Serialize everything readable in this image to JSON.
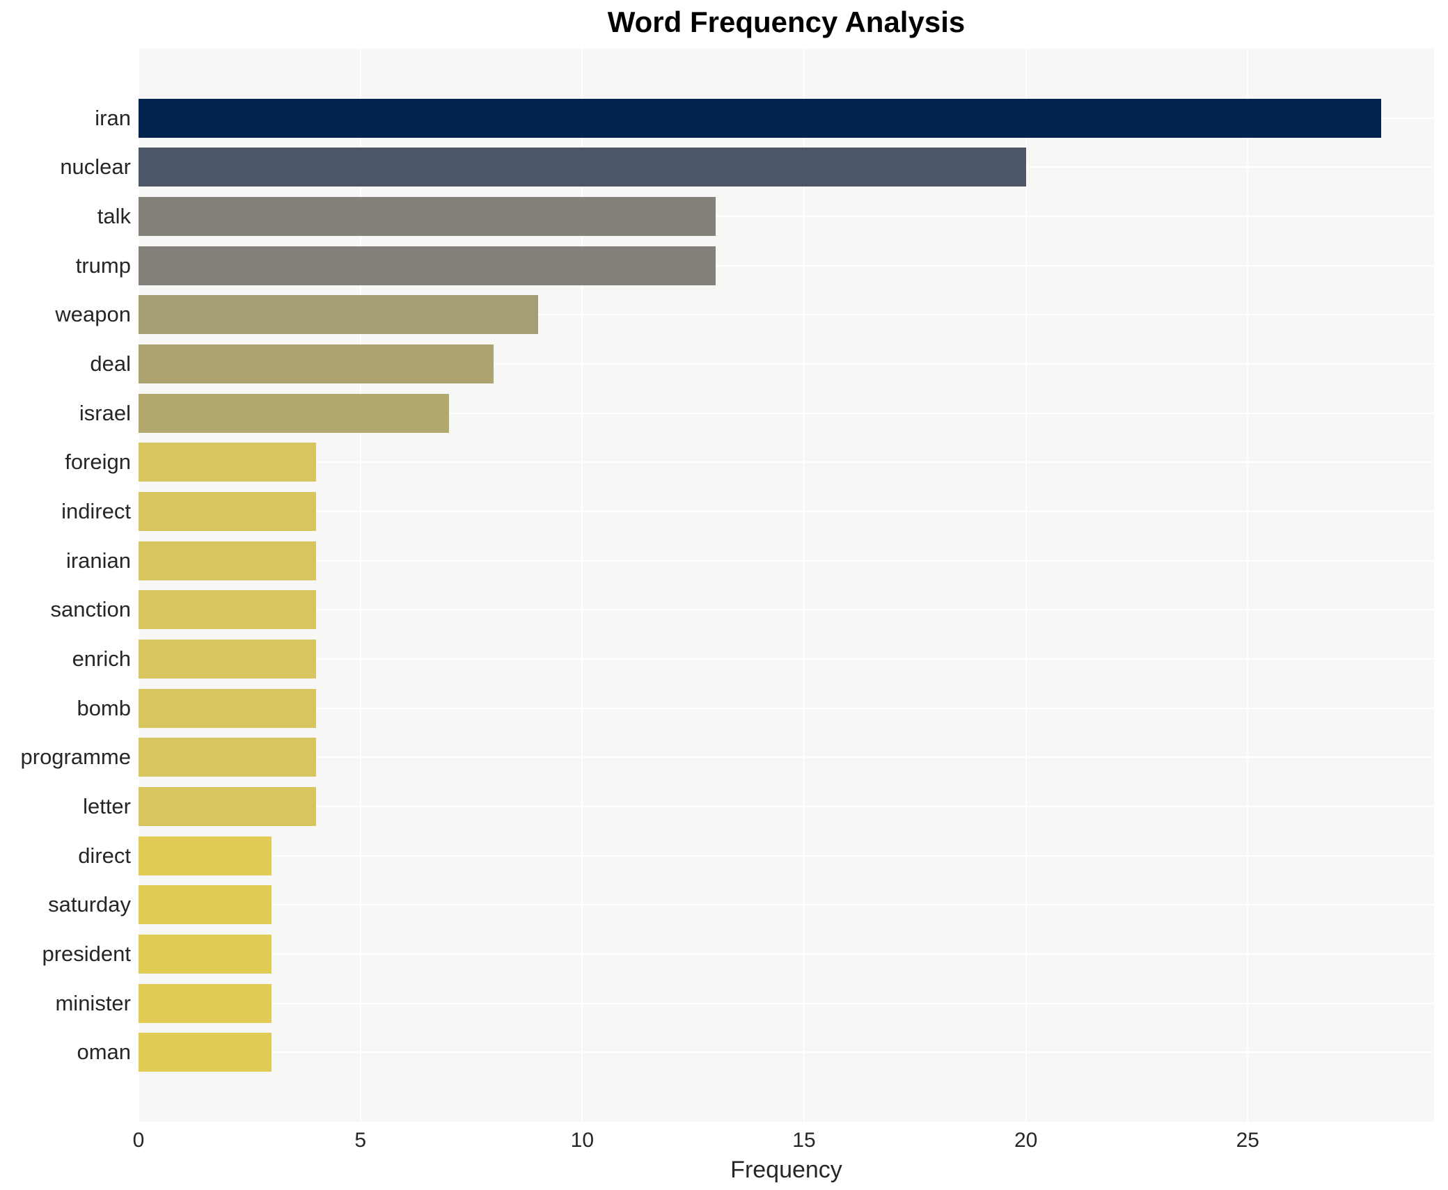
{
  "title": "Word Frequency Analysis",
  "chart_data": {
    "type": "bar",
    "orientation": "horizontal",
    "title": "Word Frequency Analysis",
    "xlabel": "Frequency",
    "ylabel": "",
    "categories": [
      "iran",
      "nuclear",
      "talk",
      "trump",
      "weapon",
      "deal",
      "israel",
      "foreign",
      "indirect",
      "iranian",
      "sanction",
      "enrich",
      "bomb",
      "programme",
      "letter",
      "direct",
      "saturday",
      "president",
      "minister",
      "oman"
    ],
    "values": [
      28,
      20,
      13,
      13,
      9,
      8,
      7,
      4,
      4,
      4,
      4,
      4,
      4,
      4,
      4,
      3,
      3,
      3,
      3,
      3
    ],
    "bar_colors": [
      "#022350",
      "#4d556a",
      "#84817a",
      "#84817a",
      "#a59d73",
      "#ada371",
      "#b2a86d",
      "#d8c55d",
      "#d8c55d",
      "#d8c55d",
      "#d8c55d",
      "#d8c55d",
      "#d8c55d",
      "#d8c55d",
      "#d8c55d",
      "#e0cb55",
      "#e0cb55",
      "#e0cb55",
      "#e0cb55",
      "#e0cb55"
    ],
    "xticks": [
      0,
      5,
      10,
      15,
      20,
      25
    ],
    "xlim": [
      0,
      29.2
    ],
    "grid": true,
    "legend": false,
    "colors": {
      "plot_background": "#f7f7f5",
      "grid_line": "#ffffff",
      "tick_text": "#262626",
      "title_text": "#000000"
    }
  }
}
